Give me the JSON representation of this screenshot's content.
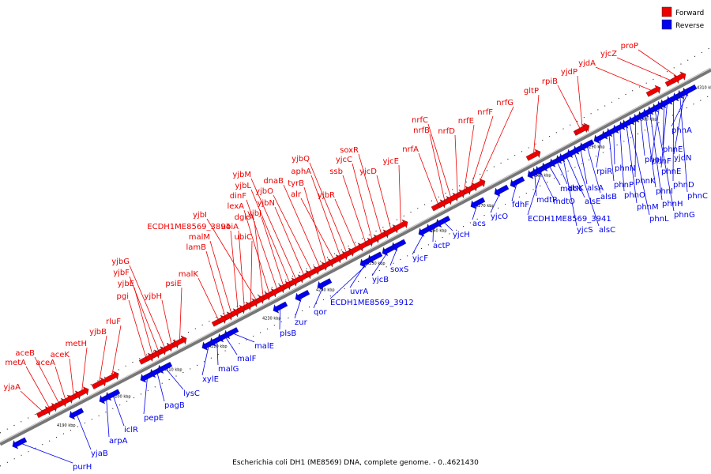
{
  "caption": "Escherichia coli DH1 (ME8569) DNA, complete genome. - 0..4621430",
  "legend": [
    {
      "label": "Forward",
      "color": "#ee0000"
    },
    {
      "label": "Reverse",
      "color": "#0000ee"
    }
  ],
  "colors": {
    "forward": "#ee0000",
    "reverse": "#0000ee",
    "backbone": "#888888"
  },
  "ticks": [
    "4190 kbp",
    "4200 kbp",
    "4210 kbp",
    "4220 kbp",
    "4230 kbp",
    "4240 kbp",
    "4250 kbp",
    "4260 kbp",
    "4270 kbp",
    "4280 kbp",
    "4290 kbp",
    "4300 kbp",
    "4310 kbp"
  ],
  "forward_genes": [
    "yjaA",
    "metA",
    "aceB",
    "aceA",
    "aceK",
    "metH",
    "yjbB",
    "rluF",
    "pgi",
    "yjbE",
    "yjbF",
    "yjbG",
    "yjbH",
    "psiE",
    "malK",
    "lamB",
    "malM",
    "ECDH1ME8569_3894",
    "ubiA",
    "ubiC",
    "yjbI",
    "dgkA",
    "lexA",
    "dinF",
    "yjbJ",
    "yjbL",
    "yjbM",
    "yjbN",
    "yjbO",
    "dnaB",
    "tyrB",
    "alr",
    "aphA",
    "yjbQ",
    "yjbR",
    "ssb",
    "yjcC",
    "soxR",
    "yjcD",
    "yjcE",
    "nrfA",
    "nrfB",
    "nrfC",
    "nrfD",
    "nrfE",
    "nrfF",
    "nrfG",
    "gltP",
    "rpiB",
    "yjdP",
    "yjdA",
    "yjcZ",
    "proP"
  ],
  "reverse_genes": [
    "purH",
    "yjaB",
    "arpA",
    "iclR",
    "pepE",
    "pagB",
    "lysC",
    "xylE",
    "malG",
    "malF",
    "malE",
    "plsB",
    "zur",
    "qor",
    "uvrA",
    "ECDH1ME8569_3912",
    "yjcB",
    "soxS",
    "yjcF",
    "actP",
    "yjcH",
    "acs",
    "yjcO",
    "fdhF",
    "mdtP",
    "mdtO",
    "ECDH1ME8569_3941",
    "mdtN",
    "alsK",
    "yjcS",
    "alsE",
    "alsC",
    "alsA",
    "alsB",
    "rpiR",
    "phnP",
    "phnN",
    "phnO",
    "phnM",
    "phnL",
    "phnK",
    "phnJ",
    "phnI",
    "phnH",
    "phnG",
    "phnF",
    "phnE",
    "phnE",
    "phnD",
    "phnC",
    "yjdN",
    "phnA"
  ]
}
